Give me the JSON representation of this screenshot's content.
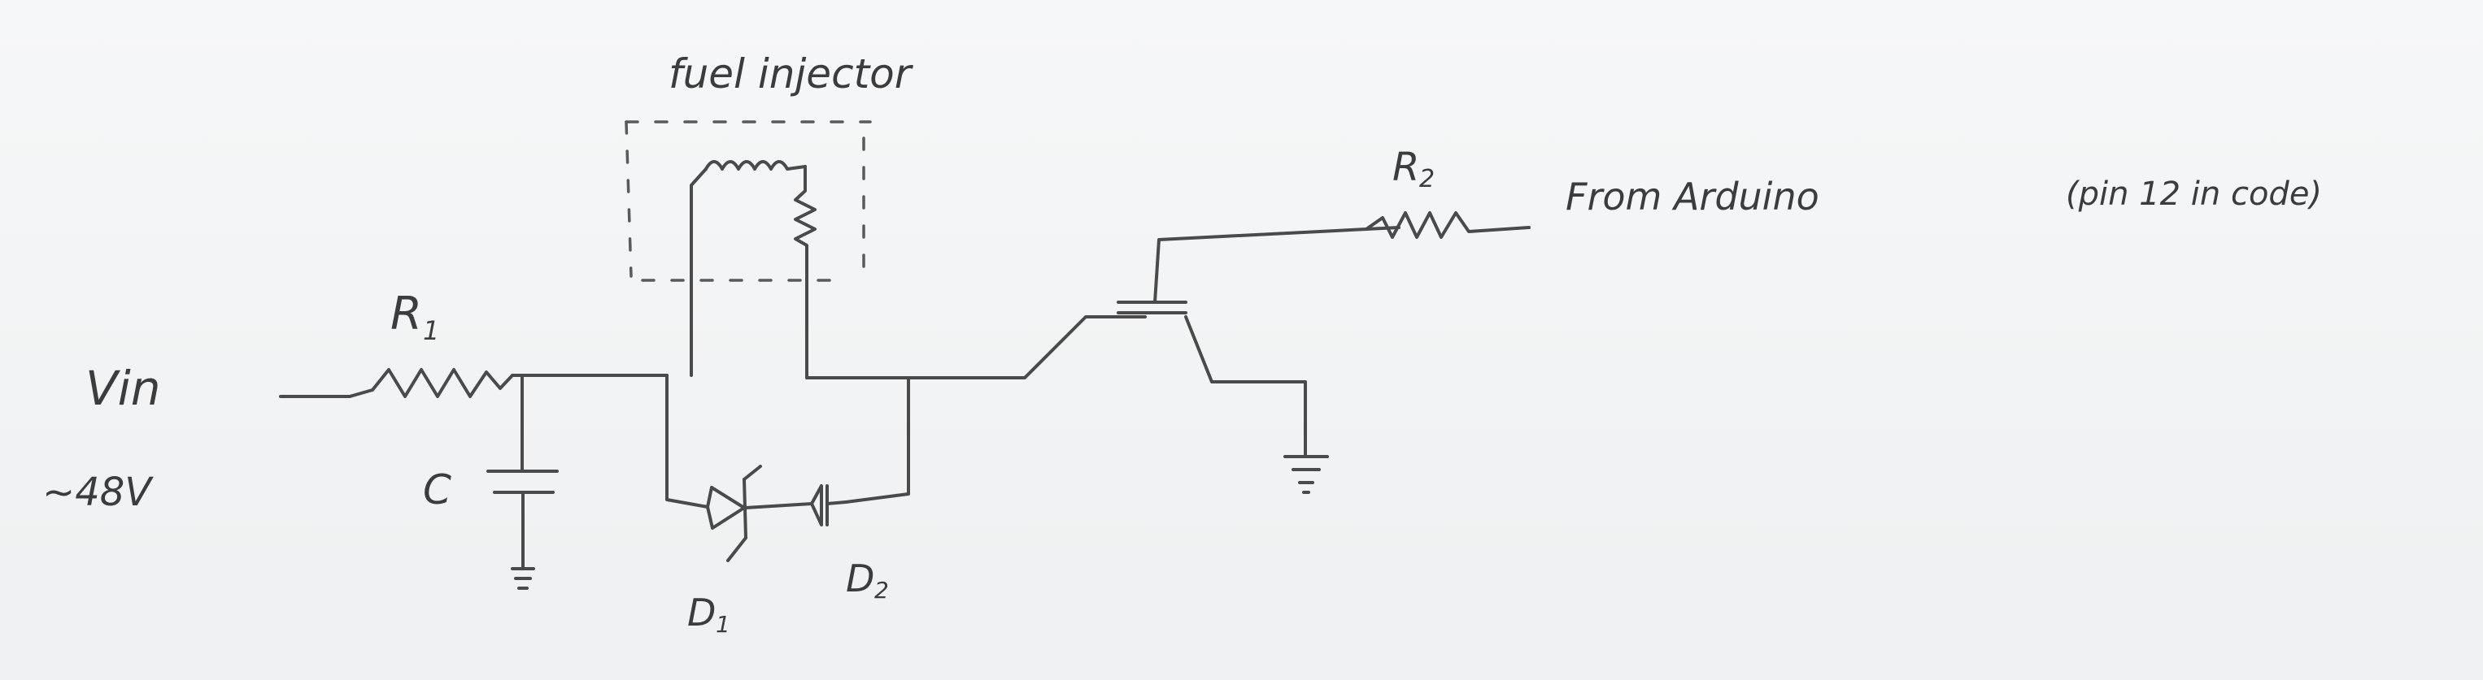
{
  "diagram": {
    "title": "fuel injector",
    "labels": {
      "vin": "Vin",
      "vin_value": "~48V",
      "r1": "R",
      "r1_sub": "1",
      "r2": "R",
      "r2_sub": "2",
      "capacitor": "C",
      "d1": "D",
      "d1_sub": "1",
      "d2": "D",
      "d2_sub": "2",
      "source": "From Arduino",
      "source_note": "(pin 12 in code)"
    },
    "components": [
      {
        "id": "R1",
        "type": "resistor"
      },
      {
        "id": "C",
        "type": "capacitor"
      },
      {
        "id": "fuel-injector",
        "type": "inductor+resistor"
      },
      {
        "id": "D1",
        "type": "zener-diode"
      },
      {
        "id": "D2",
        "type": "diode"
      },
      {
        "id": "Q",
        "type": "mosfet"
      },
      {
        "id": "R2",
        "type": "resistor"
      },
      {
        "id": "GND",
        "type": "ground"
      }
    ],
    "ink_color": "#4a4a4a"
  }
}
